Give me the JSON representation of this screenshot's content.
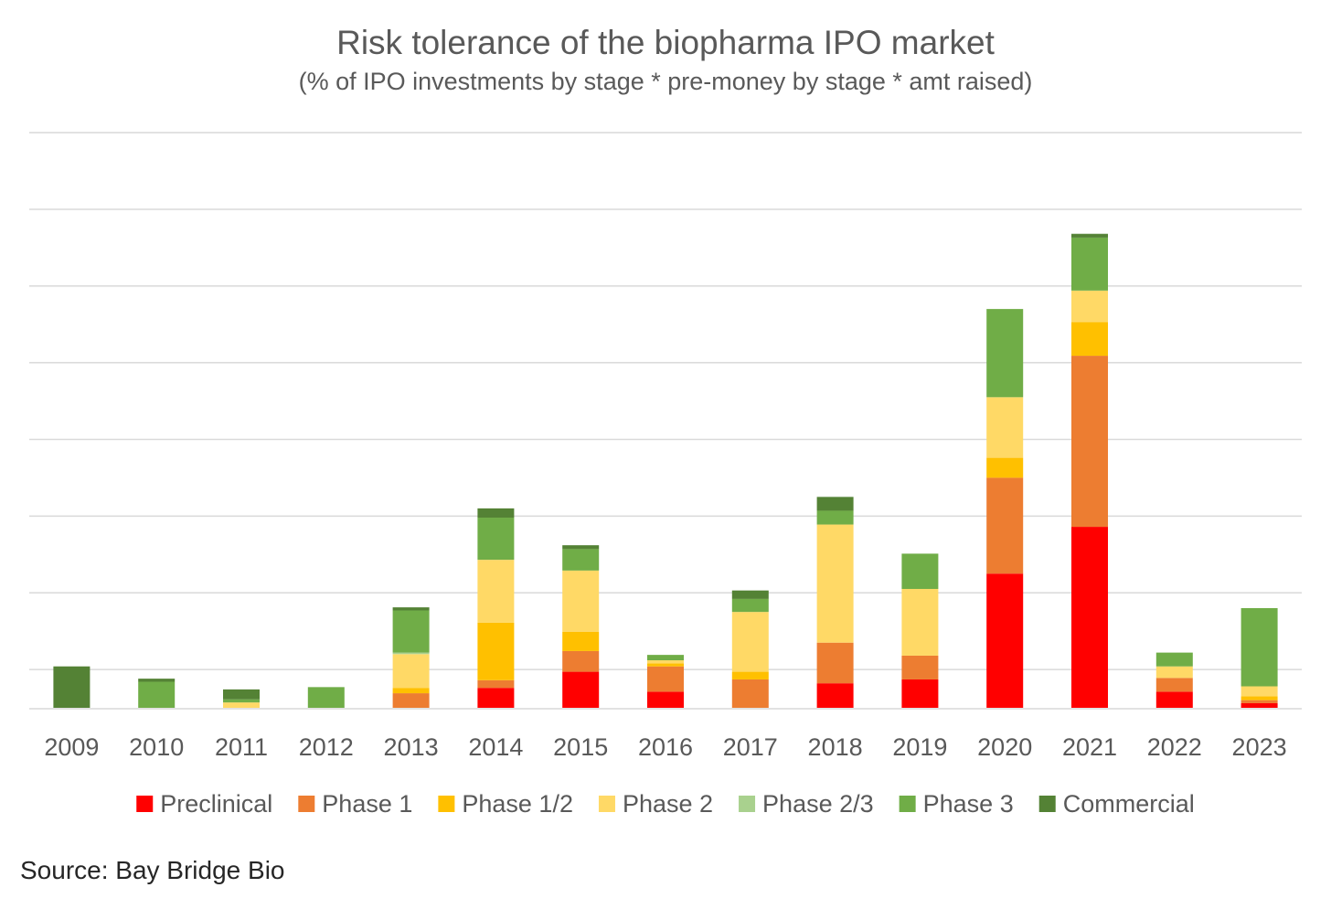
{
  "colors": {
    "Preclinical": "#ff0000",
    "Phase 1": "#ed7d31",
    "Phase 1/2": "#ffc000",
    "Phase 2": "#ffd966",
    "Phase 2/3": "#a9d18e",
    "Phase 3": "#70ad47",
    "Commercial": "#548235"
  },
  "chart_data": {
    "type": "bar",
    "stacked": true,
    "title": "Risk tolerance of the biopharma IPO market",
    "subtitle": "(% of IPO investments by stage * pre-money by stage * amt raised)",
    "xlabel": "",
    "ylabel": "",
    "y_tick_labels_shown": false,
    "ylim": [
      0,
      7.5
    ],
    "y_gridlines": [
      0.5,
      1.5,
      2.5,
      3.5,
      4.5,
      5.5,
      6.5,
      7.5
    ],
    "grid": true,
    "legend_position": "bottom",
    "categories": [
      "2009",
      "2010",
      "2011",
      "2012",
      "2013",
      "2014",
      "2015",
      "2016",
      "2017",
      "2018",
      "2019",
      "2020",
      "2021",
      "2022",
      "2023"
    ],
    "series": [
      {
        "name": "Preclinical",
        "values": [
          0,
          0,
          0,
          0,
          0,
          0.26,
          0.47,
          0.21,
          0,
          0.32,
          0.37,
          1.75,
          2.36,
          0.21,
          0.06
        ]
      },
      {
        "name": "Phase 1",
        "values": [
          0,
          0,
          0,
          0,
          0.19,
          0.1,
          0.27,
          0.33,
          0.37,
          0.53,
          0.31,
          1.25,
          2.23,
          0.18,
          0.04
        ]
      },
      {
        "name": "Phase 1/2",
        "values": [
          0,
          0,
          0,
          0,
          0.07,
          0.75,
          0.25,
          0.04,
          0.1,
          0,
          0,
          0.26,
          0.44,
          0,
          0.05
        ]
      },
      {
        "name": "Phase 2",
        "values": [
          0,
          0,
          0.07,
          0,
          0.44,
          0.82,
          0.8,
          0.04,
          0.78,
          1.54,
          0.87,
          0.79,
          0.41,
          0.15,
          0.13
        ]
      },
      {
        "name": "Phase 2/3",
        "values": [
          0,
          0,
          0,
          0,
          0.02,
          0,
          0,
          0,
          0,
          0,
          0,
          0,
          0,
          0,
          0
        ]
      },
      {
        "name": "Phase 3",
        "values": [
          0,
          0.34,
          0.04,
          0.27,
          0.55,
          0.55,
          0.28,
          0.07,
          0.17,
          0.18,
          0.46,
          1.15,
          0.69,
          0.18,
          1.02
        ]
      },
      {
        "name": "Commercial",
        "values": [
          0.54,
          0.04,
          0.13,
          0,
          0.04,
          0.12,
          0.05,
          0,
          0.11,
          0.18,
          0,
          0,
          0.05,
          0,
          0
        ]
      }
    ]
  },
  "source": "Source: Bay Bridge Bio"
}
